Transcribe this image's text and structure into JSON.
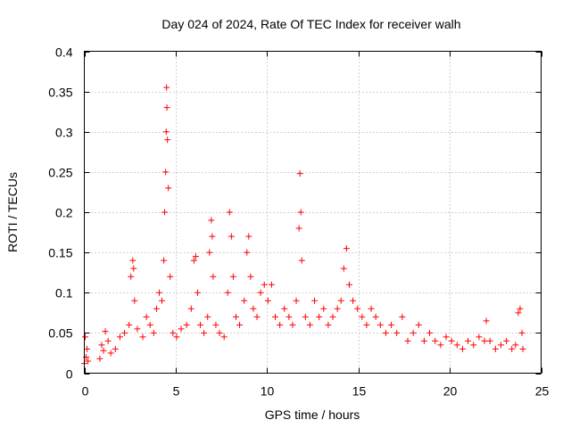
{
  "chart_data": {
    "type": "scatter",
    "title": "Day 024 of 2024, Rate Of TEC Index for receiver walh",
    "xlabel": "GPS time / hours",
    "ylabel": "ROTI / TECUs",
    "xlim": [
      0,
      25
    ],
    "ylim": [
      0,
      0.4
    ],
    "x_ticks": [
      0,
      5,
      10,
      15,
      20,
      25
    ],
    "x_tick_labels": [
      "0",
      "5",
      "10",
      "15",
      "20",
      "25"
    ],
    "y_ticks": [
      0,
      0.05,
      0.1,
      0.15,
      0.2,
      0.25,
      0.3,
      0.35,
      0.4
    ],
    "y_tick_labels": [
      "0",
      "0.05",
      "0.1",
      "0.15",
      "0.2",
      "0.25",
      "0.3",
      "0.35",
      "0.4"
    ],
    "grid": true,
    "marker": "+",
    "series": [
      {
        "name": "ROTI",
        "color": "#ff0000",
        "x": [
          0.0,
          0.05,
          0.1,
          0.15,
          0.2,
          0.85,
          0.95,
          1.05,
          1.15,
          1.3,
          1.45,
          1.7,
          1.95,
          2.2,
          2.45,
          2.55,
          2.65,
          2.7,
          2.75,
          2.9,
          3.2,
          3.4,
          3.6,
          3.8,
          3.95,
          4.1,
          4.25,
          4.35,
          4.4,
          4.45,
          4.48,
          4.5,
          4.52,
          4.55,
          4.6,
          4.7,
          4.85,
          5.05,
          5.3,
          5.6,
          5.85,
          6.0,
          6.1,
          6.2,
          6.35,
          6.55,
          6.75,
          6.85,
          6.95,
          7.0,
          7.05,
          7.2,
          7.4,
          7.65,
          7.85,
          7.95,
          8.05,
          8.15,
          8.3,
          8.5,
          8.75,
          8.9,
          9.0,
          9.1,
          9.25,
          9.45,
          9.65,
          9.85,
          10.05,
          10.25,
          10.45,
          10.7,
          10.95,
          11.2,
          11.4,
          11.6,
          11.75,
          11.8,
          11.85,
          11.9,
          12.1,
          12.35,
          12.6,
          12.85,
          13.1,
          13.35,
          13.6,
          13.85,
          14.05,
          14.2,
          14.35,
          14.5,
          14.7,
          14.95,
          15.2,
          15.45,
          15.7,
          15.95,
          16.2,
          16.5,
          16.8,
          17.1,
          17.4,
          17.7,
          18.0,
          18.3,
          18.6,
          18.9,
          19.2,
          19.5,
          19.8,
          20.1,
          20.4,
          20.7,
          21.0,
          21.3,
          21.6,
          21.9,
          22.0,
          22.2,
          22.5,
          22.8,
          23.1,
          23.4,
          23.6,
          23.75,
          23.85,
          23.95,
          24.0
        ],
        "y": [
          0.012,
          0.045,
          0.02,
          0.03,
          0.015,
          0.018,
          0.035,
          0.028,
          0.052,
          0.04,
          0.025,
          0.03,
          0.045,
          0.05,
          0.06,
          0.12,
          0.14,
          0.13,
          0.09,
          0.055,
          0.045,
          0.07,
          0.06,
          0.05,
          0.08,
          0.1,
          0.09,
          0.14,
          0.2,
          0.25,
          0.3,
          0.355,
          0.33,
          0.29,
          0.23,
          0.12,
          0.05,
          0.045,
          0.055,
          0.06,
          0.08,
          0.14,
          0.145,
          0.1,
          0.06,
          0.05,
          0.07,
          0.15,
          0.19,
          0.17,
          0.12,
          0.06,
          0.05,
          0.045,
          0.1,
          0.2,
          0.17,
          0.12,
          0.07,
          0.06,
          0.09,
          0.15,
          0.17,
          0.12,
          0.08,
          0.07,
          0.1,
          0.11,
          0.09,
          0.11,
          0.07,
          0.06,
          0.08,
          0.07,
          0.06,
          0.09,
          0.18,
          0.248,
          0.2,
          0.14,
          0.07,
          0.06,
          0.09,
          0.07,
          0.08,
          0.06,
          0.07,
          0.08,
          0.09,
          0.13,
          0.155,
          0.11,
          0.09,
          0.08,
          0.07,
          0.06,
          0.08,
          0.07,
          0.06,
          0.05,
          0.06,
          0.05,
          0.07,
          0.04,
          0.05,
          0.06,
          0.04,
          0.05,
          0.04,
          0.035,
          0.045,
          0.04,
          0.035,
          0.03,
          0.04,
          0.035,
          0.045,
          0.04,
          0.065,
          0.04,
          0.03,
          0.035,
          0.04,
          0.03,
          0.035,
          0.075,
          0.08,
          0.05,
          0.03
        ]
      }
    ]
  }
}
